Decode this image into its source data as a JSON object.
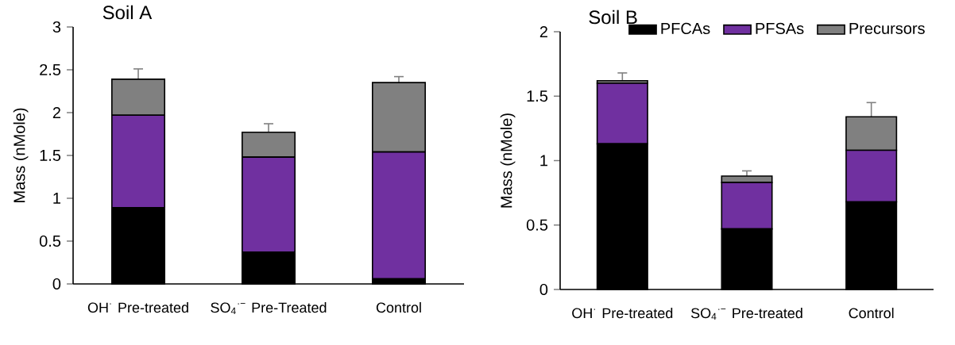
{
  "chart_data": [
    {
      "type": "bar",
      "title": "Soil A",
      "ylabel": "Mass (nMole)",
      "stacked": true,
      "legend": false,
      "grid": false,
      "categories": [
        "OH$^{·}$ Pre-treated",
        "SO$_{4}$$^{·−}$ Pre-Treated",
        "Control"
      ],
      "ylim": [
        0,
        3
      ],
      "yticks": [
        0,
        0.5,
        1,
        1.5,
        2,
        2.5,
        3
      ],
      "series": [
        {
          "color": "#000000",
          "values": [
            0.89,
            0.37,
            0.06
          ]
        },
        {
          "color": "#7030a0",
          "values": [
            1.08,
            1.11,
            1.48
          ]
        },
        {
          "color": "#808080",
          "values": [
            0.42,
            0.29,
            0.81
          ],
          "errors": [
            0.12,
            0.1,
            0.07
          ]
        }
      ]
    },
    {
      "type": "bar",
      "title": "Soil B",
      "ylabel": "Mass (nMole)",
      "stacked": true,
      "legend": "top right",
      "grid": false,
      "categories": [
        "OH$^{·}$ Pre-treated",
        "SO$_{4}$$^{·−}$ Pre-treated",
        "Control"
      ],
      "ylim": [
        0,
        2
      ],
      "yticks": [
        0,
        0.5,
        1,
        1.5,
        2
      ],
      "series": [
        {
          "name": "PFCAs",
          "color": "#000000",
          "values": [
            1.13,
            0.47,
            0.68
          ]
        },
        {
          "name": "PFSAs",
          "color": "#7030a0",
          "values": [
            0.47,
            0.36,
            0.4
          ]
        },
        {
          "name": "Precursors",
          "color": "#808080",
          "values": [
            0.02,
            0.05,
            0.26
          ],
          "errors": [
            0.06,
            0.04,
            0.11
          ]
        }
      ]
    }
  ]
}
